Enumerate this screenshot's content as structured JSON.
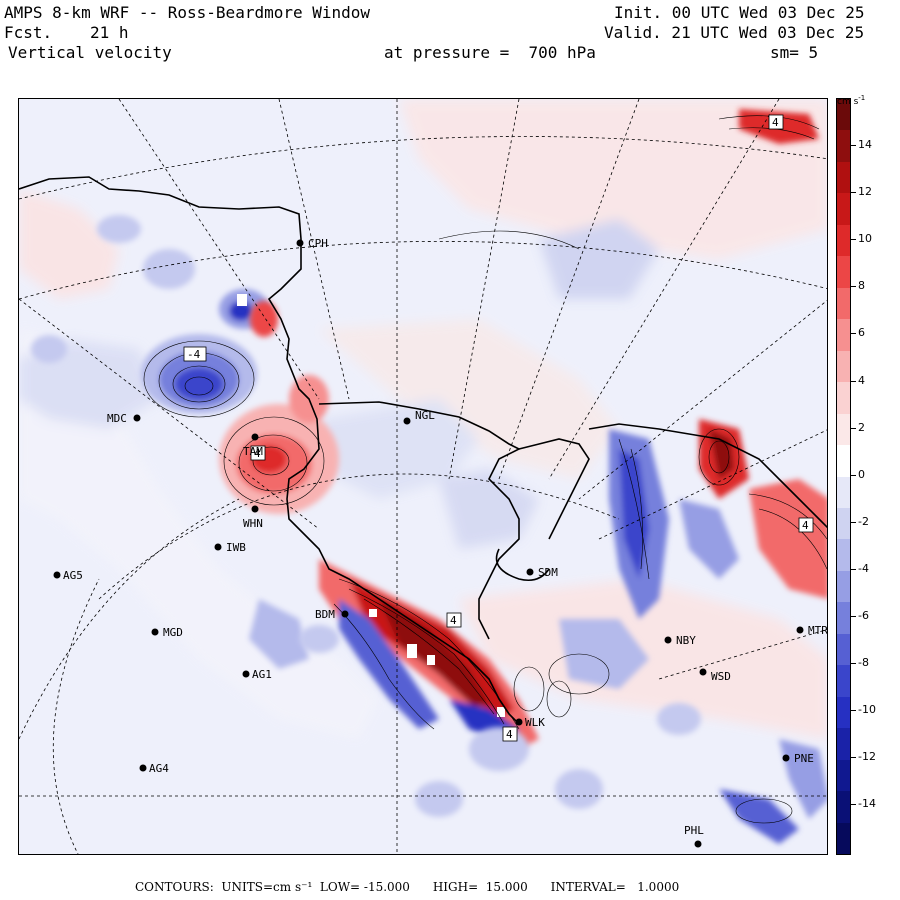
{
  "header": {
    "title": "AMPS 8-km WRF -- Ross-Beardmore Window",
    "fcst_label": "Fcst.",
    "fcst_value": "21 h",
    "variable": "Vertical velocity",
    "init": "Init. 00 UTC Wed 03 Dec 25",
    "valid": "Valid. 21 UTC Wed 03 Dec 25",
    "pressure": "at pressure =  700 hPa",
    "smoothing": "sm= 5"
  },
  "stations": [
    {
      "id": "CPH",
      "label": "CPH"
    },
    {
      "id": "MDC",
      "label": "MDC"
    },
    {
      "id": "NGL",
      "label": "NGL"
    },
    {
      "id": "TAM",
      "label": "TAM"
    },
    {
      "id": "WHN",
      "label": "WHN"
    },
    {
      "id": "IWB",
      "label": "IWB"
    },
    {
      "id": "AG5",
      "label": "AG5"
    },
    {
      "id": "SDM",
      "label": "SDM"
    },
    {
      "id": "BDM",
      "label": "BDM"
    },
    {
      "id": "MGD",
      "label": "MGD"
    },
    {
      "id": "NBY",
      "label": "NBY"
    },
    {
      "id": "AG1",
      "label": "AG1"
    },
    {
      "id": "WSD",
      "label": "WSD"
    },
    {
      "id": "MTR",
      "label": "MTR"
    },
    {
      "id": "WLK",
      "label": "WLK"
    },
    {
      "id": "PNE",
      "label": "PNE"
    },
    {
      "id": "AG4",
      "label": "AG4"
    },
    {
      "id": "PHL",
      "label": "PHL"
    }
  ],
  "contour_labels": [
    "4",
    "-4",
    "4",
    "4",
    "4",
    "4"
  ],
  "colorbar": {
    "units": "cm s",
    "units_exp": "-1",
    "ticks": [
      "14",
      "12",
      "10",
      "8",
      "6",
      "4",
      "2",
      "0",
      "-2",
      "-4",
      "-6",
      "-8",
      "-10",
      "-12",
      "-14"
    ],
    "colors": [
      "#6b0a0a",
      "#8e0e0e",
      "#b01010",
      "#c81818",
      "#de2a2a",
      "#ec4646",
      "#f26a6a",
      "#f69090",
      "#f8b2b2",
      "#fad2d2",
      "#fbe8e8",
      "#ffffff",
      "#e6e8f8",
      "#cfd3f1",
      "#b4baeb",
      "#969ee4",
      "#7680dc",
      "#5660d3",
      "#3a45cb",
      "#2630c2",
      "#1a22a8",
      "#101890",
      "#0a1076",
      "#060a5c"
    ]
  },
  "footer": "CONTOURS:  UNITS=cm s⁻¹  LOW= -15.000      HIGH=  15.000      INTERVAL=   1.0000"
}
